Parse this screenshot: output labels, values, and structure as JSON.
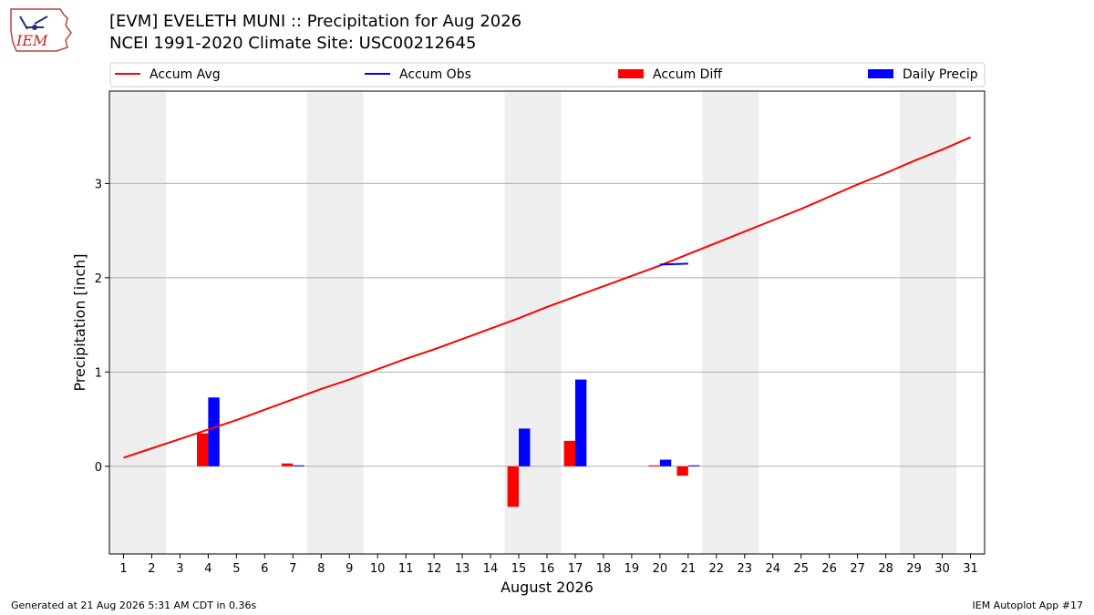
{
  "header": {
    "title_line1": "[EVM] EVELETH MUNI :: Precipitation for Aug 2026",
    "title_line2": "NCEI 1991-2020 Climate Site: USC00212645",
    "logo_text": "IEM"
  },
  "footer": {
    "generated": "Generated at 21 Aug 2026 5:31 AM CDT in 0.36s",
    "app": "IEM Autoplot App #17"
  },
  "colors": {
    "accum_avg": "#ff0000",
    "accum_obs": "#0000ff",
    "accum_diff": "#ff0000",
    "daily_precip": "#0000ff",
    "weekend_shade": "#eeeeee",
    "grid": "#b0b0b0"
  },
  "chart_data": {
    "type": "bar",
    "title": "[EVM] EVELETH MUNI :: Precipitation for Aug 2026",
    "subtitle": "NCEI 1991-2020 Climate Site: USC00212645",
    "xlabel": "August 2026",
    "ylabel": "Precipitation [inch]",
    "xlim": [
      0.5,
      31.5
    ],
    "ylim": [
      -0.93,
      3.98
    ],
    "y_ticks": [
      0,
      1,
      2,
      3
    ],
    "x_ticks": [
      1,
      2,
      3,
      4,
      5,
      6,
      7,
      8,
      9,
      10,
      11,
      12,
      13,
      14,
      15,
      16,
      17,
      18,
      19,
      20,
      21,
      22,
      23,
      24,
      25,
      26,
      27,
      28,
      29,
      30,
      31
    ],
    "grid": "horizontal",
    "legend_placement": "top",
    "legend": [
      "Accum Avg",
      "Accum Obs",
      "Accum Diff",
      "Daily Precip"
    ],
    "weekend_days": [
      [
        1,
        2
      ],
      [
        8,
        9
      ],
      [
        15,
        16
      ],
      [
        22,
        23
      ],
      [
        29,
        30
      ]
    ],
    "series": [
      {
        "name": "Accum Avg",
        "kind": "line",
        "x": [
          1,
          2,
          3,
          4,
          5,
          6,
          7,
          8,
          9,
          10,
          11,
          12,
          13,
          14,
          15,
          16,
          17,
          18,
          19,
          20,
          21,
          22,
          23,
          24,
          25,
          26,
          27,
          28,
          29,
          30,
          31
        ],
        "values": [
          0.09,
          0.19,
          0.29,
          0.39,
          0.49,
          0.6,
          0.71,
          0.82,
          0.92,
          1.03,
          1.14,
          1.24,
          1.35,
          1.46,
          1.57,
          1.69,
          1.8,
          1.91,
          2.02,
          2.13,
          2.25,
          2.37,
          2.49,
          2.61,
          2.73,
          2.86,
          2.99,
          3.11,
          3.24,
          3.36,
          3.49
        ]
      },
      {
        "name": "Accum Obs",
        "kind": "line",
        "x": [
          20,
          21
        ],
        "values": [
          2.14,
          2.15
        ]
      },
      {
        "name": "Accum Diff",
        "kind": "bar",
        "x": [
          4,
          7,
          15,
          17,
          20,
          21
        ],
        "values": [
          0.35,
          0.03,
          -0.43,
          0.27,
          0.01,
          -0.1
        ]
      },
      {
        "name": "Daily Precip",
        "kind": "bar",
        "x": [
          4,
          7,
          15,
          17,
          20,
          21
        ],
        "values": [
          0.73,
          0.01,
          0.4,
          0.92,
          0.07,
          0.01
        ]
      }
    ]
  }
}
